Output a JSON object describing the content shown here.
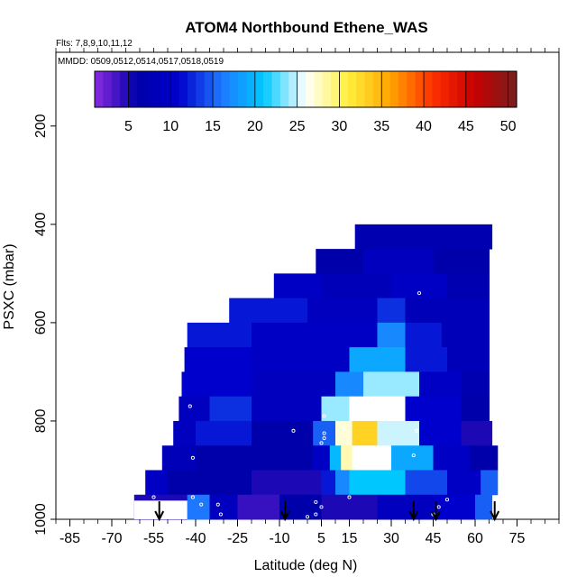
{
  "chart_data": {
    "type": "heatmap",
    "title": "ATOM4 Northbound Ethene_WAS",
    "flights_label": "Flts: 7,8,9,10,11,12",
    "dates_label": "MMDD: 0509,0512,0514,0517,0518,0519",
    "xlabel": "Latitude (deg N)",
    "ylabel": "PSXC (mbar)",
    "xlim": [
      -90,
      90
    ],
    "ylim": [
      1000,
      50
    ],
    "x_ticks": [
      -85,
      -70,
      -55,
      -40,
      -25,
      -10,
      5,
      15,
      30,
      45,
      60,
      75
    ],
    "y_ticks": [
      200,
      400,
      600,
      800,
      1000
    ],
    "colorbar": {
      "ticks": [
        5,
        10,
        15,
        20,
        25,
        30,
        35,
        40,
        45,
        50
      ],
      "range": [
        1,
        51
      ],
      "colors": [
        "#8a2be2",
        "#0000aa",
        "#0000cc",
        "#1e78ff",
        "#00c8ff",
        "#ffffff",
        "#fff03c",
        "#ffa500",
        "#ff3000",
        "#c80000",
        "#781e1e"
      ]
    },
    "rows": [
      {
        "p": [
          400,
          450
        ],
        "cells": [
          [
            17,
            66,
            7
          ]
        ]
      },
      {
        "p": [
          450,
          500
        ],
        "cells": [
          [
            3,
            20,
            6
          ],
          [
            20,
            45,
            9
          ],
          [
            45,
            65,
            6
          ]
        ]
      },
      {
        "p": [
          500,
          550
        ],
        "cells": [
          [
            -12,
            5,
            10
          ],
          [
            5,
            30,
            8
          ],
          [
            30,
            50,
            10
          ],
          [
            50,
            65,
            7
          ]
        ]
      },
      {
        "p": [
          550,
          600
        ],
        "cells": [
          [
            -28,
            0,
            12
          ],
          [
            0,
            25,
            9
          ],
          [
            25,
            35,
            13
          ],
          [
            35,
            65,
            8
          ]
        ]
      },
      {
        "p": [
          600,
          650
        ],
        "cells": [
          [
            -43,
            -20,
            12
          ],
          [
            -20,
            25,
            10
          ],
          [
            25,
            35,
            17
          ],
          [
            35,
            48,
            12
          ],
          [
            48,
            65,
            8
          ]
        ]
      },
      {
        "p": [
          650,
          700
        ],
        "cells": [
          [
            -44,
            -20,
            11
          ],
          [
            -20,
            15,
            10
          ],
          [
            15,
            35,
            19
          ],
          [
            35,
            50,
            12
          ],
          [
            50,
            65,
            8
          ]
        ]
      },
      {
        "p": [
          700,
          750
        ],
        "cells": [
          [
            -45,
            -20,
            11
          ],
          [
            -20,
            10,
            9
          ],
          [
            10,
            20,
            17
          ],
          [
            20,
            40,
            24
          ],
          [
            40,
            55,
            10
          ],
          [
            55,
            65,
            7
          ]
        ]
      },
      {
        "p": [
          750,
          800
        ],
        "cells": [
          [
            -46,
            -35,
            9
          ],
          [
            -35,
            -20,
            13
          ],
          [
            -20,
            5,
            9
          ],
          [
            5,
            15,
            24
          ],
          [
            15,
            35,
            26
          ],
          [
            35,
            55,
            11
          ],
          [
            55,
            65,
            6
          ]
        ]
      },
      {
        "p": [
          800,
          850
        ],
        "cells": [
          [
            -48,
            -40,
            9
          ],
          [
            -40,
            -20,
            12
          ],
          [
            -20,
            2,
            6
          ],
          [
            2,
            10,
            15
          ],
          [
            10,
            16,
            27
          ],
          [
            16,
            25,
            33
          ],
          [
            25,
            40,
            25
          ],
          [
            40,
            55,
            11
          ],
          [
            55,
            66,
            5
          ]
        ]
      },
      {
        "p": [
          850,
          900
        ],
        "cells": [
          [
            -52,
            -40,
            8
          ],
          [
            -40,
            -20,
            6
          ],
          [
            -20,
            2,
            6
          ],
          [
            2,
            8,
            10
          ],
          [
            8,
            12,
            20
          ],
          [
            12,
            16,
            28
          ],
          [
            16,
            30,
            26
          ],
          [
            30,
            45,
            19
          ],
          [
            45,
            58,
            10
          ],
          [
            58,
            68,
            6
          ]
        ]
      },
      {
        "p": [
          900,
          950
        ],
        "cells": [
          [
            -58,
            -50,
            10
          ],
          [
            -50,
            -20,
            6
          ],
          [
            -20,
            5,
            5
          ],
          [
            5,
            10,
            12
          ],
          [
            10,
            15,
            17
          ],
          [
            15,
            35,
            21
          ],
          [
            35,
            50,
            14
          ],
          [
            50,
            62,
            10
          ],
          [
            62,
            68,
            15
          ]
        ]
      },
      {
        "p": [
          950,
          1000
        ],
        "cells": [
          [
            -62,
            -43,
            5
          ],
          [
            -43,
            -35,
            16
          ],
          [
            -35,
            -25,
            9
          ],
          [
            -25,
            -10,
            4
          ],
          [
            -10,
            5,
            6
          ],
          [
            5,
            25,
            5
          ],
          [
            25,
            45,
            9
          ],
          [
            45,
            60,
            11
          ],
          [
            60,
            66,
            15
          ]
        ]
      }
    ],
    "gap": {
      "x": [
        -62,
        -43
      ],
      "p": [
        962,
        1000
      ]
    },
    "arrows": [
      -53,
      -8,
      38,
      46,
      67
    ],
    "samples": [
      [
        -55,
        955
      ],
      [
        -42,
        770
      ],
      [
        -41,
        875
      ],
      [
        -41,
        955
      ],
      [
        -38,
        970
      ],
      [
        -32,
        970
      ],
      [
        -31,
        990
      ],
      [
        -5,
        820
      ],
      [
        0,
        995
      ],
      [
        3,
        990
      ],
      [
        3,
        965
      ],
      [
        5,
        975
      ],
      [
        6,
        790
      ],
      [
        6,
        825
      ],
      [
        6,
        835
      ],
      [
        5,
        845
      ],
      [
        13,
        815
      ],
      [
        15,
        955
      ],
      [
        38,
        870
      ],
      [
        39,
        820
      ],
      [
        45,
        990
      ],
      [
        47,
        975
      ],
      [
        40,
        540
      ],
      [
        50,
        960
      ]
    ]
  }
}
